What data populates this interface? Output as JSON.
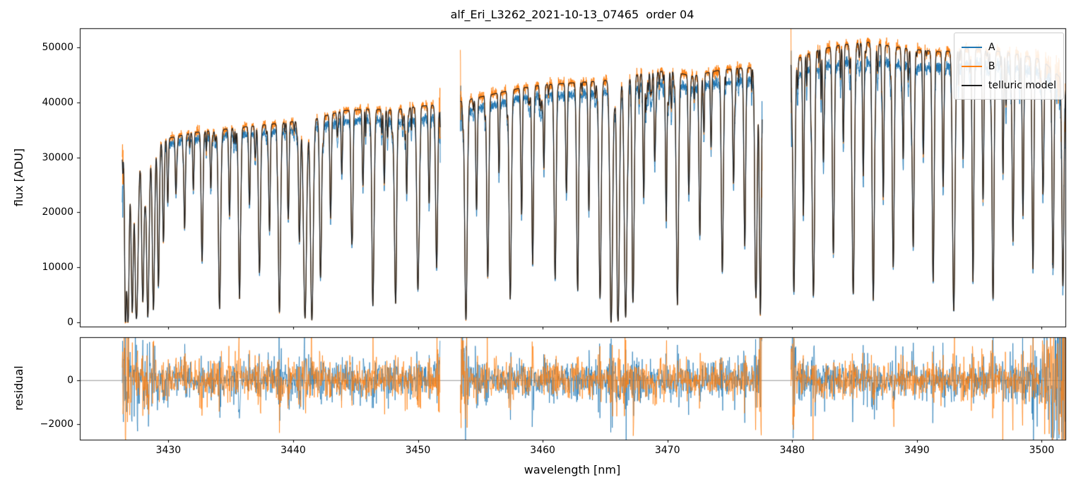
{
  "chart_data": {
    "type": "line",
    "title": "alf_Eri_L3262_2021-10-13_07465  order 04",
    "xlabel": "wavelength [nm]",
    "xlim": [
      3422.9,
      3501.9
    ],
    "xticks": [
      3430,
      3440,
      3450,
      3460,
      3470,
      3480,
      3490,
      3500
    ],
    "panels": [
      {
        "name": "flux",
        "ylabel": "flux [ADU]",
        "ylim": [
          -800,
          53500
        ],
        "yticks": [
          0,
          10000,
          20000,
          30000,
          40000,
          50000
        ]
      },
      {
        "name": "residual",
        "ylabel": "residual",
        "ylim": [
          -2700,
          1950
        ],
        "yticks": [
          -2000,
          0
        ],
        "zero_line": 0
      }
    ],
    "legend": {
      "position": "upper right",
      "entries": [
        {
          "label": "A",
          "color": "#1f77b4"
        },
        {
          "label": "B",
          "color": "#ff7f0e"
        },
        {
          "label": "telluric model",
          "color": "#1f1f1f"
        }
      ]
    },
    "grid": false,
    "segments": [
      [
        3426.3,
        3451.8
      ],
      [
        3453.4,
        3477.6
      ],
      [
        3479.9,
        3502.8
      ]
    ],
    "continuum_B": [
      [
        3426.3,
        30000
      ],
      [
        3428,
        31000
      ],
      [
        3430,
        33500
      ],
      [
        3432,
        34500
      ],
      [
        3434,
        35000
      ],
      [
        3436,
        35500
      ],
      [
        3438,
        36000
      ],
      [
        3440,
        36500
      ],
      [
        3442,
        37200
      ],
      [
        3444,
        38500
      ],
      [
        3446,
        38800
      ],
      [
        3448,
        38600
      ],
      [
        3450,
        39300
      ],
      [
        3451.8,
        39600
      ],
      [
        3453.4,
        40200
      ],
      [
        3456,
        41500
      ],
      [
        3458,
        42500
      ],
      [
        3460,
        43200
      ],
      [
        3462,
        43500
      ],
      [
        3464,
        43800
      ],
      [
        3466,
        44200
      ],
      [
        3468,
        45300
      ],
      [
        3470,
        45800
      ],
      [
        3472,
        44800
      ],
      [
        3474,
        45800
      ],
      [
        3476,
        46300
      ],
      [
        3477.6,
        46300
      ],
      [
        3479.9,
        47500
      ],
      [
        3482,
        49500
      ],
      [
        3484,
        50500
      ],
      [
        3486,
        51000
      ],
      [
        3488,
        50200
      ],
      [
        3490,
        49600
      ],
      [
        3492,
        49200
      ],
      [
        3494,
        49800
      ],
      [
        3496,
        49500
      ],
      [
        3498,
        48800
      ],
      [
        3500,
        47800
      ],
      [
        3501.5,
        44500
      ],
      [
        3502.8,
        39500
      ]
    ],
    "ratio_A": [
      [
        3426,
        0.97
      ],
      [
        3434,
        0.965
      ],
      [
        3442,
        0.955
      ],
      [
        3450,
        0.94
      ],
      [
        3458,
        0.955
      ],
      [
        3466,
        0.95
      ],
      [
        3474,
        0.95
      ],
      [
        3481,
        0.94
      ],
      [
        3486,
        0.93
      ],
      [
        3494,
        0.945
      ],
      [
        3502.8,
        0.95
      ]
    ],
    "absorption_lines": [
      [
        3426.55,
        0.9,
        0.06
      ],
      [
        3426.75,
        0.97,
        0.1
      ],
      [
        3427.1,
        0.92,
        0.08
      ],
      [
        3427.45,
        0.97,
        0.12
      ],
      [
        3427.95,
        0.88,
        0.09
      ],
      [
        3428.35,
        0.97,
        0.1
      ],
      [
        3428.8,
        0.93,
        0.09
      ],
      [
        3429.2,
        0.8,
        0.07
      ],
      [
        3429.6,
        0.55,
        0.06
      ],
      [
        3429.95,
        0.35,
        0.05
      ],
      [
        3430.6,
        0.3,
        0.05
      ],
      [
        3431.3,
        0.5,
        0.06
      ],
      [
        3432.0,
        0.3,
        0.05
      ],
      [
        3432.7,
        0.68,
        0.07
      ],
      [
        3433.4,
        0.3,
        0.05
      ],
      [
        3434.1,
        0.93,
        0.09
      ],
      [
        3434.9,
        0.45,
        0.06
      ],
      [
        3435.7,
        0.88,
        0.08
      ],
      [
        3436.5,
        0.4,
        0.06
      ],
      [
        3437.3,
        0.75,
        0.08
      ],
      [
        3438.1,
        0.5,
        0.06
      ],
      [
        3438.9,
        0.95,
        0.09
      ],
      [
        3439.6,
        0.45,
        0.06
      ],
      [
        3440.5,
        0.6,
        0.07
      ],
      [
        3440.95,
        0.98,
        0.12
      ],
      [
        3441.5,
        0.99,
        0.11
      ],
      [
        3442.2,
        0.75,
        0.08
      ],
      [
        3443.0,
        0.5,
        0.06
      ],
      [
        3443.9,
        0.3,
        0.05
      ],
      [
        3444.7,
        0.62,
        0.07
      ],
      [
        3445.6,
        0.35,
        0.05
      ],
      [
        3446.4,
        0.85,
        0.09
      ],
      [
        3447.3,
        0.3,
        0.05
      ],
      [
        3448.2,
        0.88,
        0.09
      ],
      [
        3449.1,
        0.4,
        0.05
      ],
      [
        3450.0,
        0.85,
        0.09
      ],
      [
        3450.9,
        0.45,
        0.06
      ],
      [
        3451.5,
        0.75,
        0.08
      ],
      [
        3453.85,
        0.99,
        0.1
      ],
      [
        3454.7,
        0.5,
        0.06
      ],
      [
        3455.6,
        0.8,
        0.08
      ],
      [
        3456.5,
        0.35,
        0.05
      ],
      [
        3457.4,
        0.9,
        0.09
      ],
      [
        3458.3,
        0.45,
        0.06
      ],
      [
        3459.2,
        0.7,
        0.07
      ],
      [
        3460.1,
        0.35,
        0.05
      ],
      [
        3461.0,
        0.82,
        0.08
      ],
      [
        3461.9,
        0.45,
        0.06
      ],
      [
        3462.8,
        0.85,
        0.08
      ],
      [
        3463.7,
        0.5,
        0.06
      ],
      [
        3464.6,
        0.9,
        0.09
      ],
      [
        3465.5,
        0.97,
        0.11
      ],
      [
        3466.05,
        0.99,
        0.1
      ],
      [
        3466.65,
        0.98,
        0.11
      ],
      [
        3467.25,
        0.9,
        0.08
      ],
      [
        3468.1,
        0.5,
        0.06
      ],
      [
        3469.0,
        0.3,
        0.05
      ],
      [
        3469.9,
        0.55,
        0.06
      ],
      [
        3470.8,
        0.93,
        0.09
      ],
      [
        3471.7,
        0.4,
        0.05
      ],
      [
        3472.6,
        0.65,
        0.07
      ],
      [
        3473.5,
        0.3,
        0.05
      ],
      [
        3474.4,
        0.8,
        0.08
      ],
      [
        3475.3,
        0.45,
        0.06
      ],
      [
        3476.2,
        0.7,
        0.07
      ],
      [
        3477.1,
        0.9,
        0.09
      ],
      [
        3477.45,
        0.97,
        0.08
      ],
      [
        3480.15,
        0.85,
        0.08
      ],
      [
        3480.9,
        0.5,
        0.06
      ],
      [
        3481.7,
        0.9,
        0.09
      ],
      [
        3482.5,
        0.4,
        0.05
      ],
      [
        3483.3,
        0.75,
        0.08
      ],
      [
        3484.1,
        0.35,
        0.05
      ],
      [
        3484.9,
        0.88,
        0.09
      ],
      [
        3485.7,
        0.45,
        0.06
      ],
      [
        3486.5,
        0.92,
        0.09
      ],
      [
        3487.3,
        0.55,
        0.06
      ],
      [
        3488.1,
        0.8,
        0.08
      ],
      [
        3488.9,
        0.4,
        0.05
      ],
      [
        3489.7,
        0.72,
        0.07
      ],
      [
        3490.5,
        0.35,
        0.05
      ],
      [
        3491.3,
        0.85,
        0.08
      ],
      [
        3492.1,
        0.5,
        0.06
      ],
      [
        3492.95,
        0.96,
        0.1
      ],
      [
        3493.7,
        0.4,
        0.05
      ],
      [
        3494.5,
        0.75,
        0.07
      ],
      [
        3495.3,
        0.55,
        0.06
      ],
      [
        3496.1,
        0.88,
        0.08
      ],
      [
        3496.9,
        0.45,
        0.05
      ],
      [
        3497.7,
        0.7,
        0.07
      ],
      [
        3498.5,
        0.6,
        0.06
      ],
      [
        3499.3,
        0.8,
        0.07
      ],
      [
        3500.1,
        0.5,
        0.06
      ],
      [
        3500.9,
        0.75,
        0.07
      ],
      [
        3501.7,
        0.85,
        0.08
      ]
    ],
    "microlines": {
      "seed": 7,
      "count": 170,
      "depth": [
        0.02,
        0.13
      ],
      "width": [
        0.02,
        0.05
      ]
    },
    "noise": {
      "seed_flux_A": 11,
      "seed_flux_B": 22,
      "seed_res_A": 33,
      "seed_res_B": 44,
      "flux_sigma_base": 90,
      "flux_sigma_scale": 0.009,
      "residual_sigma": 380
    }
  }
}
